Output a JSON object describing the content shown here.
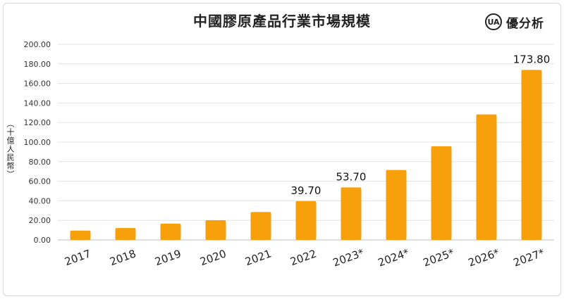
{
  "brand": {
    "logo_text": "UA",
    "name": "優分析"
  },
  "chart_data": {
    "type": "bar",
    "title": "中國膠原產品行業市場規模",
    "xlabel": "",
    "ylabel": "（十億人民幣）",
    "categories": [
      "2017",
      "2018",
      "2019",
      "2020",
      "2021",
      "2022",
      "2023*",
      "2024*",
      "2025*",
      "2026*",
      "2027*"
    ],
    "values": [
      9.5,
      12.1,
      16.6,
      20.1,
      28.5,
      39.7,
      53.7,
      71.5,
      95.8,
      128.3,
      173.8
    ],
    "data_labels": [
      null,
      null,
      null,
      null,
      null,
      "39.70",
      "53.70",
      null,
      null,
      null,
      "173.80"
    ],
    "ylim": [
      0,
      200
    ],
    "yticks": [
      "0.00",
      "20.00",
      "40.00",
      "60.00",
      "80.00",
      "100.00",
      "120.00",
      "140.00",
      "160.00",
      "180.00",
      "200.00"
    ],
    "grid": true,
    "bar_color": "#F7A00B"
  }
}
